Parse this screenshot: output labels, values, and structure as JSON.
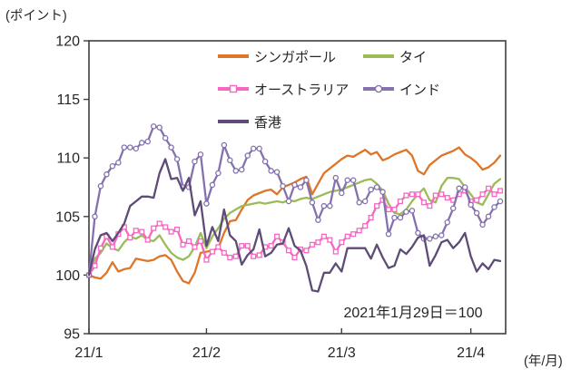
{
  "page": {
    "unit_label": "(ポイント)",
    "axis_unit_label": "(年/月)",
    "annotation": "2021年1月29日＝100"
  },
  "chart_data": {
    "type": "line",
    "title": "",
    "ylabel": "(ポイント)",
    "xlabel": "(年/月)",
    "ylim": [
      95,
      120
    ],
    "yticks": [
      95,
      100,
      105,
      110,
      115,
      120
    ],
    "grid": false,
    "legend_position": "top-inside",
    "frame_color": "#3f3f3f",
    "note": "2021年1月29日＝100",
    "x_ticks": [
      {
        "index": 0,
        "label": "21/1"
      },
      {
        "index": 20,
        "label": "21/2"
      },
      {
        "index": 43,
        "label": "21/3"
      },
      {
        "index": 65,
        "label": "21/4"
      }
    ],
    "n_points": 71,
    "series": [
      {
        "name": "シンガポール",
        "color": "#DE7528",
        "marker": "none",
        "values": [
          100.0,
          99.8,
          99.7,
          100.2,
          101.1,
          100.3,
          100.5,
          100.6,
          101.4,
          101.3,
          101.2,
          101.3,
          101.6,
          101.7,
          101.3,
          100.3,
          99.5,
          99.3,
          100.2,
          101.9,
          102.0,
          102.1,
          102.3,
          103.6,
          104.6,
          104.7,
          105.6,
          106.4,
          106.8,
          107.0,
          107.2,
          107.3,
          106.9,
          107.5,
          107.7,
          107.9,
          108.2,
          108.4,
          106.9,
          107.8,
          108.7,
          109.1,
          109.5,
          109.9,
          110.2,
          110.1,
          110.4,
          110.7,
          110.3,
          110.5,
          109.8,
          110.0,
          110.3,
          110.5,
          110.7,
          110.2,
          108.9,
          108.6,
          109.4,
          109.8,
          110.2,
          110.4,
          110.6,
          110.9,
          110.3,
          110.0,
          109.6,
          109.0,
          109.2,
          109.6,
          110.2
        ]
      },
      {
        "name": "タイ",
        "color": "#9BBB59",
        "marker": "none",
        "values": [
          100.0,
          101.4,
          101.9,
          102.7,
          102.3,
          102.1,
          102.8,
          103.3,
          103.1,
          103.4,
          103.0,
          102.9,
          103.4,
          102.6,
          101.9,
          101.5,
          101.3,
          101.6,
          102.4,
          103.6,
          102.3,
          103.3,
          104.0,
          104.8,
          105.3,
          105.6,
          105.9,
          106.0,
          106.1,
          106.2,
          106.1,
          106.2,
          106.3,
          106.2,
          106.4,
          106.3,
          106.5,
          106.6,
          106.5,
          106.7,
          106.9,
          107.1,
          107.2,
          107.3,
          107.5,
          107.7,
          107.9,
          108.1,
          108.2,
          107.8,
          107.2,
          106.1,
          105.3,
          105.2,
          105.6,
          106.3,
          106.9,
          107.4,
          106.4,
          106.2,
          107.6,
          108.3,
          108.3,
          108.2,
          107.5,
          106.9,
          106.2,
          106.0,
          106.9,
          107.8,
          108.2
        ]
      },
      {
        "name": "オーストラリア",
        "color": "#F766C1",
        "marker": "square",
        "values": [
          100.0,
          100.8,
          102.3,
          103.3,
          102.4,
          103.5,
          104.1,
          103.2,
          103.8,
          103.7,
          103.0,
          104.0,
          104.4,
          104.1,
          103.7,
          103.9,
          102.6,
          102.9,
          102.4,
          102.9,
          101.3,
          102.0,
          102.4,
          101.9,
          101.5,
          101.6,
          102.5,
          102.5,
          101.6,
          101.7,
          102.4,
          102.5,
          103.3,
          102.8,
          102.1,
          101.5,
          102.2,
          102.1,
          102.6,
          102.8,
          103.3,
          103.0,
          102.0,
          102.8,
          103.3,
          103.5,
          103.8,
          104.2,
          104.9,
          105.9,
          106.4,
          105.6,
          105.6,
          106.3,
          106.8,
          106.9,
          106.9,
          106.2,
          105.9,
          106.8,
          106.9,
          106.6,
          106.4,
          106.9,
          107.2,
          106.3,
          106.4,
          106.9,
          107.4,
          106.9,
          107.2
        ]
      },
      {
        "name": "インド",
        "color": "#8471AD",
        "marker": "circle",
        "values": [
          100.0,
          105.0,
          107.6,
          108.6,
          109.3,
          109.6,
          110.9,
          110.9,
          110.8,
          111.3,
          111.4,
          112.7,
          112.6,
          111.7,
          110.9,
          109.9,
          107.5,
          107.5,
          109.7,
          110.3,
          106.1,
          107.7,
          108.7,
          111.1,
          109.8,
          108.9,
          109.0,
          110.2,
          110.8,
          110.8,
          109.7,
          108.9,
          108.8,
          107.6,
          106.3,
          107.7,
          107.5,
          108.1,
          106.2,
          104.7,
          105.9,
          105.9,
          108.3,
          107.0,
          108.1,
          108.1,
          106.2,
          106.3,
          107.3,
          107.5,
          107.1,
          103.5,
          104.9,
          104.9,
          105.4,
          105.5,
          103.6,
          103.1,
          103.1,
          103.3,
          103.4,
          104.5,
          105.7,
          107.4,
          107.5,
          106.0,
          105.3,
          104.3,
          105.0,
          105.8,
          106.3
        ]
      },
      {
        "name": "香港",
        "color": "#5E4B76",
        "marker": "none",
        "values": [
          100.0,
          102.2,
          103.4,
          103.6,
          102.9,
          103.6,
          104.4,
          105.9,
          106.3,
          106.7,
          106.7,
          106.6,
          108.7,
          109.9,
          108.2,
          108.3,
          107.2,
          108.3,
          105.1,
          106.3,
          102.5,
          104.1,
          102.9,
          105.6,
          103.4,
          102.9,
          100.9,
          101.7,
          102.2,
          103.9,
          101.6,
          101.9,
          102.6,
          102.7,
          104.0,
          102.5,
          102.1,
          100.8,
          98.7,
          98.6,
          100.2,
          100.2,
          101.0,
          100.3,
          102.3,
          102.3,
          102.3,
          102.3,
          101.4,
          102.6,
          101.5,
          100.6,
          100.8,
          102.2,
          101.8,
          102.4,
          103.2,
          103.4,
          100.8,
          101.7,
          102.8,
          103.0,
          102.3,
          102.8,
          103.6,
          101.6,
          100.3,
          101.0,
          100.5,
          101.3,
          101.2
        ]
      }
    ]
  }
}
